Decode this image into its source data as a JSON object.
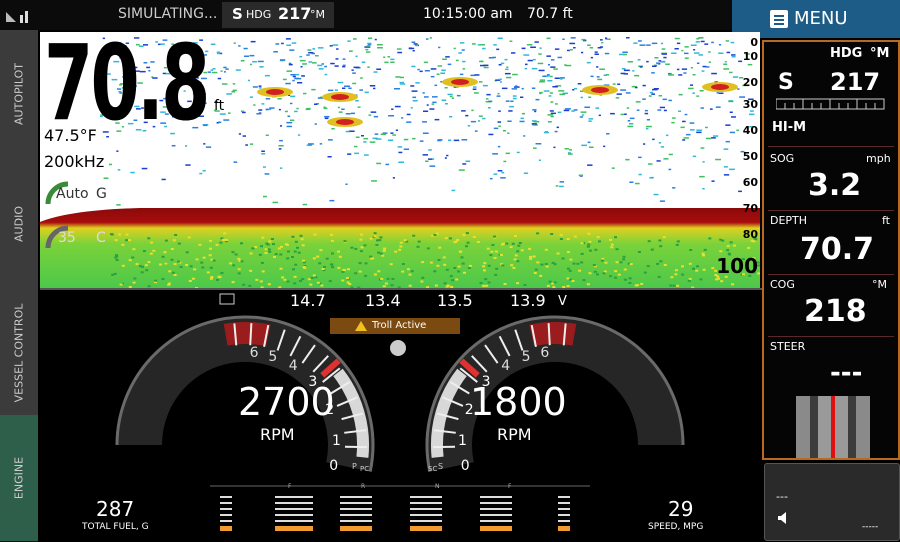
{
  "status_bar": {
    "mode": "SIMULATING...",
    "heading_ref": "S",
    "heading_label": "HDG",
    "heading": "217",
    "heading_unit": "°M",
    "time": "10:15:00 am",
    "depth": "70.7 ft"
  },
  "menu": "MENU",
  "tabs": [
    "AUTOPILOT",
    "AUDIO",
    "VESSEL CONTROL",
    "ENGINE"
  ],
  "sonar": {
    "depth": "70.8",
    "depth_unit": "ft",
    "temperature": "47.5°F",
    "frequency": "200kHz",
    "gain_mode": "Auto",
    "gain_label": "G",
    "color": "35",
    "color_label": "C",
    "scale": [
      "0",
      "10",
      "20",
      "30",
      "40",
      "50",
      "60",
      "70",
      "80",
      "100"
    ]
  },
  "engine": {
    "voltages": [
      "14.7",
      "13.4",
      "13.5",
      "13.9"
    ],
    "voltage_unit": "V",
    "alert": "Troll Active",
    "gauges": [
      {
        "rpm": "2700",
        "unit": "RPM",
        "ticks": [
          "6",
          "5",
          "4",
          "3",
          "2",
          "1",
          "0"
        ],
        "labels": [
          "P",
          "PC"
        ]
      },
      {
        "rpm": "1800",
        "unit": "RPM",
        "ticks": [
          "6",
          "5",
          "4",
          "3",
          "2",
          "1",
          "0"
        ],
        "labels": [
          "S",
          "SC"
        ]
      }
    ],
    "gears": [
      "F",
      "R",
      "N",
      "F"
    ],
    "total_fuel": "287",
    "total_fuel_label": "TOTAL FUEL, G",
    "speed": "29",
    "speed_label": "SPEED, MPG"
  },
  "panel": {
    "heading": {
      "label": "HDG",
      "unit": "°M",
      "ref": "S",
      "value": "217",
      "mode": "HI-M"
    },
    "sog": {
      "label": "SOG",
      "unit": "mph",
      "value": "3.2"
    },
    "depth": {
      "label": "DEPTH",
      "unit": "ft",
      "value": "70.7"
    },
    "cog": {
      "label": "COG",
      "unit": "°M",
      "value": "218"
    },
    "steer": {
      "label": "STEER",
      "value": "---"
    },
    "footer": {
      "value": "---",
      "secondary": "-----"
    }
  }
}
